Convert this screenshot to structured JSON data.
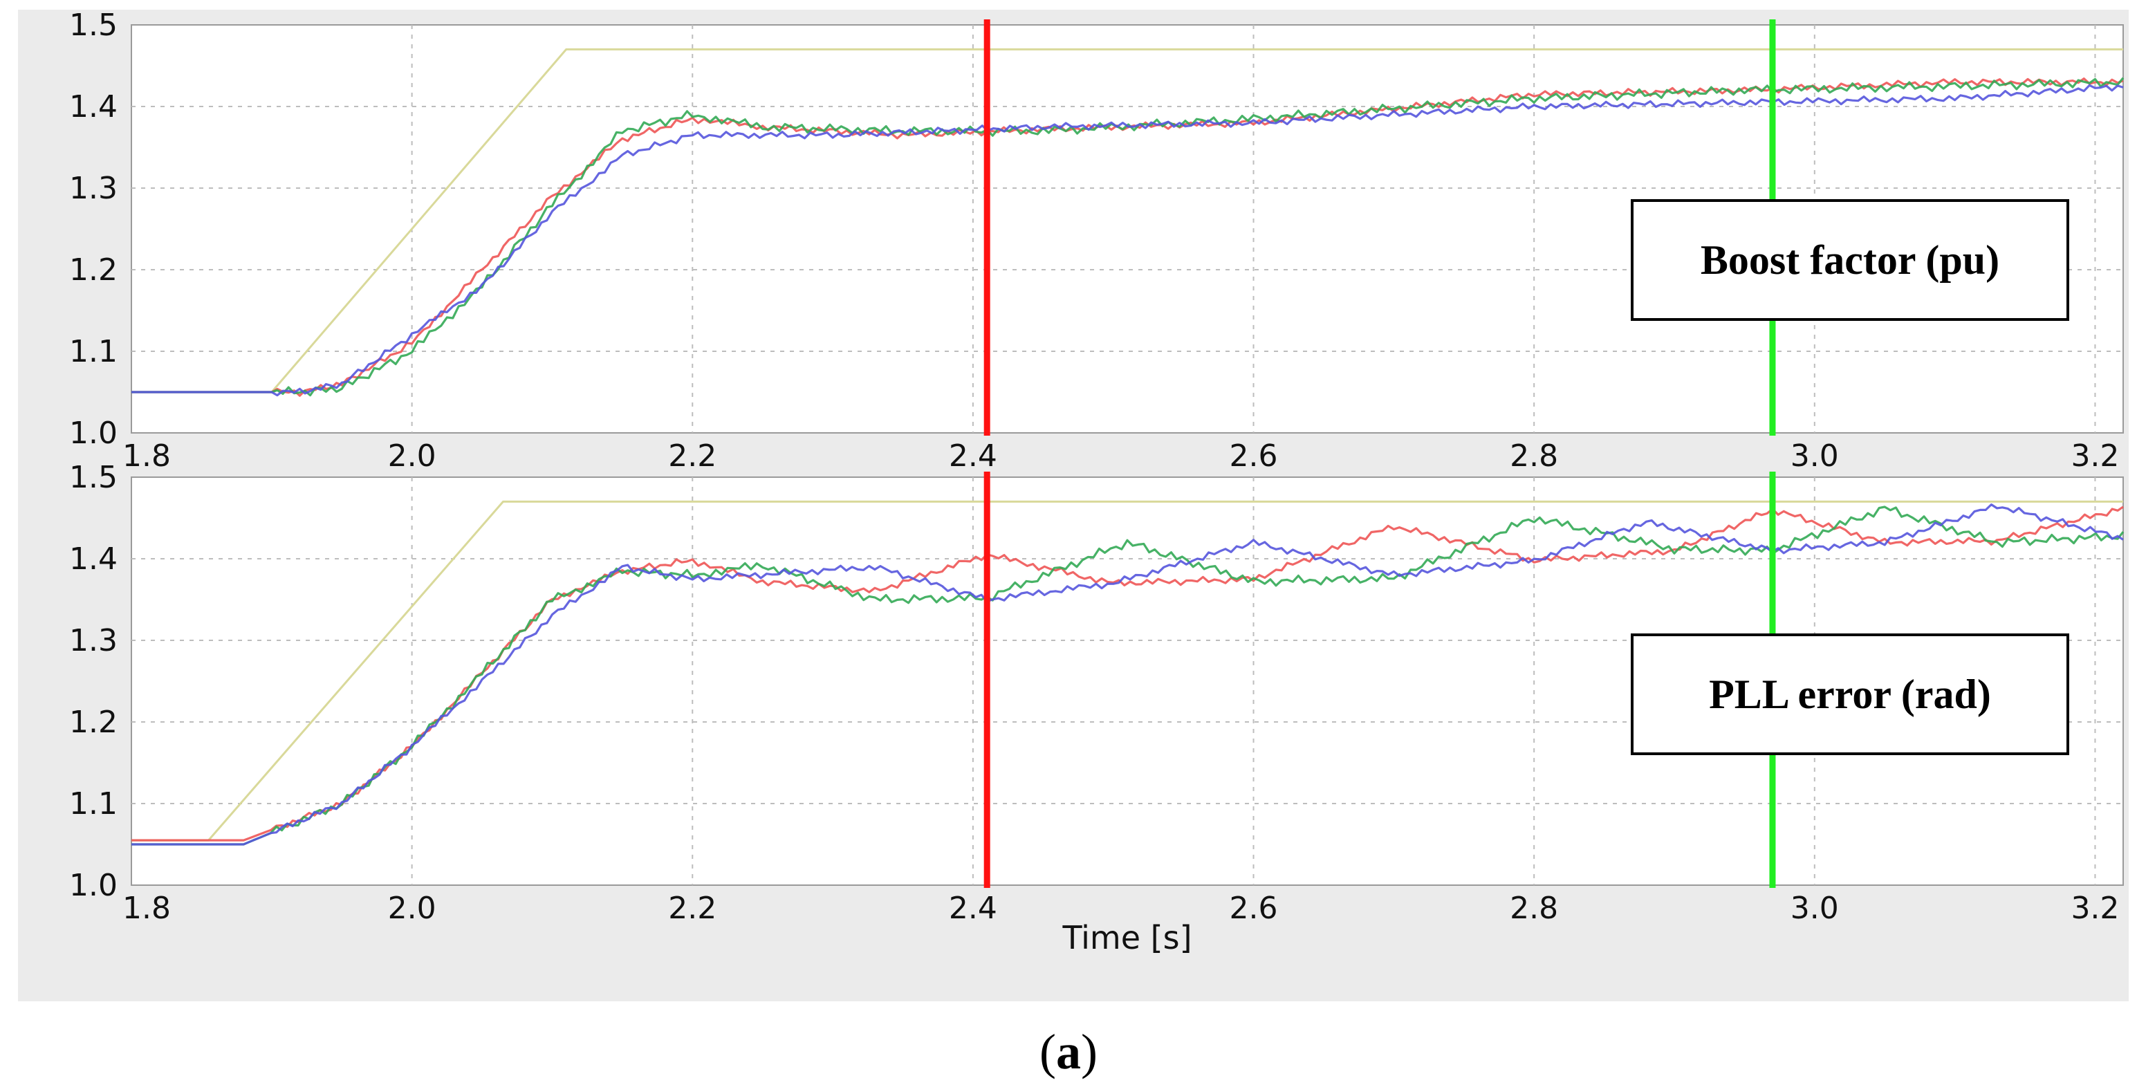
{
  "chart_data": [
    {
      "id": "top",
      "type": "line",
      "annotation": "Boost factor (pu)",
      "xlim": [
        1.8,
        3.22
      ],
      "ylim": [
        1.0,
        1.5
      ],
      "x_ticks": [
        "1.8",
        "2.0",
        "2.2",
        "2.4",
        "2.6",
        "2.8",
        "3.0",
        "3.2"
      ],
      "x_tick_values": [
        1.8,
        2.0,
        2.2,
        2.4,
        2.6,
        2.8,
        3.0,
        3.2
      ],
      "y_ticks": [
        "1.0",
        "1.1",
        "1.2",
        "1.3",
        "1.4",
        "1.5"
      ],
      "y_tick_values": [
        1.0,
        1.1,
        1.2,
        1.3,
        1.4,
        1.5
      ],
      "grid": true,
      "markers": [
        {
          "name": "red-marker",
          "x": 2.41,
          "color": "#ff1111"
        },
        {
          "name": "green-marker",
          "x": 2.97,
          "color": "#22ee22"
        }
      ],
      "series": [
        {
          "name": "reference",
          "color": "#d9d99a",
          "ripple": 0,
          "points": [
            [
              1.8,
              1.05
            ],
            [
              1.9,
              1.05
            ],
            [
              2.11,
              1.47
            ],
            [
              3.22,
              1.47
            ]
          ]
        },
        {
          "name": "phase-red",
          "color": "#ee5555",
          "ripple": 0.003,
          "points": [
            [
              1.8,
              1.05
            ],
            [
              1.92,
              1.05
            ],
            [
              1.95,
              1.06
            ],
            [
              2.0,
              1.11
            ],
            [
              2.05,
              1.2
            ],
            [
              2.1,
              1.29
            ],
            [
              2.15,
              1.36
            ],
            [
              2.2,
              1.385
            ],
            [
              2.25,
              1.375
            ],
            [
              2.35,
              1.365
            ],
            [
              2.45,
              1.372
            ],
            [
              2.6,
              1.38
            ],
            [
              2.8,
              1.415
            ],
            [
              2.95,
              1.42
            ],
            [
              3.1,
              1.43
            ],
            [
              3.22,
              1.43
            ]
          ]
        },
        {
          "name": "phase-green",
          "color": "#33aa55",
          "ripple": 0.004,
          "points": [
            [
              1.8,
              1.05
            ],
            [
              1.92,
              1.05
            ],
            [
              1.95,
              1.055
            ],
            [
              2.0,
              1.1
            ],
            [
              2.05,
              1.18
            ],
            [
              2.1,
              1.28
            ],
            [
              2.15,
              1.37
            ],
            [
              2.2,
              1.39
            ],
            [
              2.25,
              1.375
            ],
            [
              2.35,
              1.37
            ],
            [
              2.45,
              1.37
            ],
            [
              2.6,
              1.385
            ],
            [
              2.8,
              1.41
            ],
            [
              2.95,
              1.42
            ],
            [
              3.1,
              1.425
            ],
            [
              3.22,
              1.43
            ]
          ]
        },
        {
          "name": "phase-blue",
          "color": "#5555dd",
          "ripple": 0.003,
          "points": [
            [
              1.8,
              1.05
            ],
            [
              1.92,
              1.05
            ],
            [
              1.95,
              1.06
            ],
            [
              2.0,
              1.12
            ],
            [
              2.05,
              1.18
            ],
            [
              2.1,
              1.27
            ],
            [
              2.15,
              1.34
            ],
            [
              2.2,
              1.365
            ],
            [
              2.3,
              1.365
            ],
            [
              2.45,
              1.375
            ],
            [
              2.6,
              1.38
            ],
            [
              2.8,
              1.4
            ],
            [
              2.95,
              1.405
            ],
            [
              3.1,
              1.41
            ],
            [
              3.22,
              1.425
            ]
          ]
        }
      ]
    },
    {
      "id": "bottom",
      "type": "line",
      "annotation": "PLL error (rad)",
      "xlabel": "Time [s]",
      "xlim": [
        1.8,
        3.22
      ],
      "ylim": [
        1.0,
        1.5
      ],
      "x_ticks": [
        "1.8",
        "2.0",
        "2.2",
        "2.4",
        "2.6",
        "2.8",
        "3.0",
        "3.2"
      ],
      "x_tick_values": [
        1.8,
        2.0,
        2.2,
        2.4,
        2.6,
        2.8,
        3.0,
        3.2
      ],
      "y_ticks": [
        "1.0",
        "1.1",
        "1.2",
        "1.3",
        "1.4",
        "1.5"
      ],
      "y_tick_values": [
        1.0,
        1.1,
        1.2,
        1.3,
        1.4,
        1.5
      ],
      "grid": true,
      "markers": [
        {
          "name": "red-marker",
          "x": 2.41,
          "color": "#ff1111"
        },
        {
          "name": "green-marker",
          "x": 2.97,
          "color": "#22ee22"
        }
      ],
      "series": [
        {
          "name": "reference",
          "color": "#d9d99a",
          "ripple": 0,
          "points": [
            [
              1.8,
              1.055
            ],
            [
              1.855,
              1.055
            ],
            [
              2.065,
              1.47
            ],
            [
              3.22,
              1.47
            ]
          ]
        },
        {
          "name": "phase-red",
          "color": "#ee5555",
          "ripple": 0.003,
          "points": [
            [
              1.8,
              1.055
            ],
            [
              1.85,
              1.055
            ],
            [
              1.88,
              1.055
            ],
            [
              1.95,
              1.1
            ],
            [
              2.0,
              1.17
            ],
            [
              2.05,
              1.26
            ],
            [
              2.1,
              1.35
            ],
            [
              2.15,
              1.385
            ],
            [
              2.2,
              1.398
            ],
            [
              2.25,
              1.372
            ],
            [
              2.33,
              1.36
            ],
            [
              2.41,
              1.405
            ],
            [
              2.5,
              1.37
            ],
            [
              2.6,
              1.375
            ],
            [
              2.7,
              1.44
            ],
            [
              2.8,
              1.398
            ],
            [
              2.9,
              1.41
            ],
            [
              2.97,
              1.46
            ],
            [
              3.05,
              1.42
            ],
            [
              3.13,
              1.422
            ],
            [
              3.22,
              1.462
            ]
          ]
        },
        {
          "name": "phase-green",
          "color": "#33aa55",
          "ripple": 0.004,
          "points": [
            [
              1.8,
              1.05
            ],
            [
              1.85,
              1.05
            ],
            [
              1.88,
              1.05
            ],
            [
              1.95,
              1.1
            ],
            [
              2.0,
              1.17
            ],
            [
              2.05,
              1.26
            ],
            [
              2.1,
              1.35
            ],
            [
              2.15,
              1.385
            ],
            [
              2.2,
              1.38
            ],
            [
              2.25,
              1.392
            ],
            [
              2.33,
              1.35
            ],
            [
              2.41,
              1.352
            ],
            [
              2.51,
              1.42
            ],
            [
              2.6,
              1.372
            ],
            [
              2.7,
              1.376
            ],
            [
              2.8,
              1.45
            ],
            [
              2.9,
              1.412
            ],
            [
              2.97,
              1.41
            ],
            [
              3.05,
              1.462
            ],
            [
              3.13,
              1.42
            ],
            [
              3.22,
              1.428
            ]
          ]
        },
        {
          "name": "phase-blue",
          "color": "#5555dd",
          "ripple": 0.003,
          "points": [
            [
              1.8,
              1.05
            ],
            [
              1.85,
              1.05
            ],
            [
              1.88,
              1.05
            ],
            [
              1.95,
              1.1
            ],
            [
              2.0,
              1.17
            ],
            [
              2.05,
              1.25
            ],
            [
              2.1,
              1.33
            ],
            [
              2.15,
              1.39
            ],
            [
              2.2,
              1.375
            ],
            [
              2.33,
              1.39
            ],
            [
              2.41,
              1.35
            ],
            [
              2.5,
              1.37
            ],
            [
              2.6,
              1.42
            ],
            [
              2.7,
              1.38
            ],
            [
              2.8,
              1.398
            ],
            [
              2.88,
              1.445
            ],
            [
              2.97,
              1.41
            ],
            [
              3.05,
              1.42
            ],
            [
              3.13,
              1.465
            ],
            [
              3.22,
              1.425
            ]
          ]
        }
      ]
    }
  ],
  "caption": {
    "open": "(",
    "letter": "a",
    "close": ")"
  }
}
